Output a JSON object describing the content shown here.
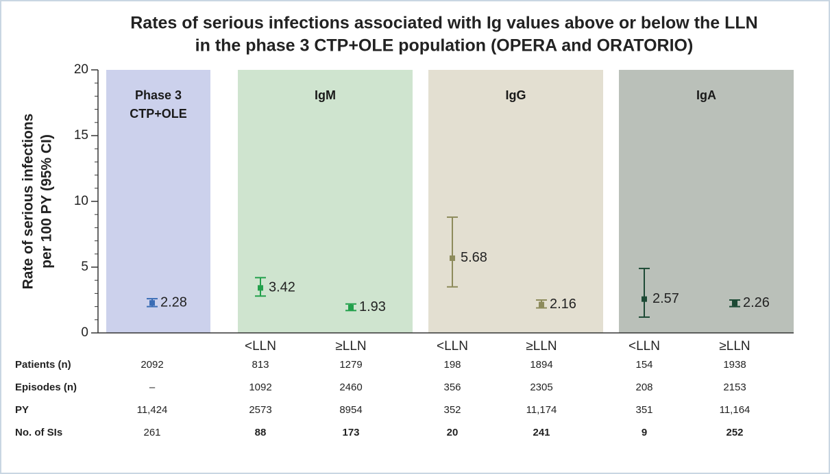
{
  "chart_data": {
    "type": "errorbar",
    "title": [
      "Rates of serious infections associated with Ig values above or below the LLN",
      "in the phase 3 CTP+OLE population (OPERA and ORATORIO)"
    ],
    "ylabel": [
      "Rate of serious infections",
      "per 100 PY (95% CI)"
    ],
    "ylim": [
      0,
      20
    ],
    "yticks": [
      0,
      5,
      10,
      15,
      20
    ],
    "yminorticks": [
      1,
      2,
      3,
      4,
      6,
      7,
      8,
      9,
      11,
      12,
      13,
      14,
      16,
      17,
      18,
      19
    ],
    "groups": [
      {
        "name": [
          "Phase 3",
          "CTP+OLE"
        ],
        "color": "#ccd1ec",
        "text_color": "#3b6db5"
      },
      {
        "name": [
          "IgM"
        ],
        "color": "#cfe4cf",
        "text_color": "#22a04b"
      },
      {
        "name": [
          "IgG"
        ],
        "color": "#e3dfd1",
        "text_color": "#8d8b5b"
      },
      {
        "name": [
          "IgA"
        ],
        "color": "#bac0b9",
        "text_color": "#1d4a35"
      }
    ],
    "categories": [
      null,
      "<LLN",
      "≥LLN",
      "<LLN",
      "≥LLN",
      "<LLN",
      "≥LLN"
    ],
    "values": [
      2.28,
      3.42,
      1.93,
      5.68,
      2.16,
      2.57,
      2.26
    ],
    "lower": [
      2.0,
      2.8,
      1.7,
      3.5,
      1.9,
      1.2,
      2.0
    ],
    "upper": [
      2.6,
      4.2,
      2.2,
      8.8,
      2.5,
      4.9,
      2.5
    ],
    "colors": [
      "#3b6db5",
      "#22a04b",
      "#22a04b",
      "#8d8b5b",
      "#8d8b5b",
      "#1d4a35",
      "#1d4a35"
    ]
  },
  "table": {
    "rows": [
      [
        "Patients (n)",
        "2092",
        "813",
        "1279",
        "198",
        "1894",
        "154",
        "1938"
      ],
      [
        "Episodes (n)",
        "–",
        "1092",
        "2460",
        "356",
        "2305",
        "208",
        "2153"
      ],
      [
        "PY",
        "11,424",
        "2573",
        "8954",
        "352",
        "11,174",
        "351",
        "11,164"
      ],
      [
        "No. of SIs",
        "261",
        "88",
        "173",
        "20",
        "241",
        "9",
        "252"
      ]
    ]
  }
}
